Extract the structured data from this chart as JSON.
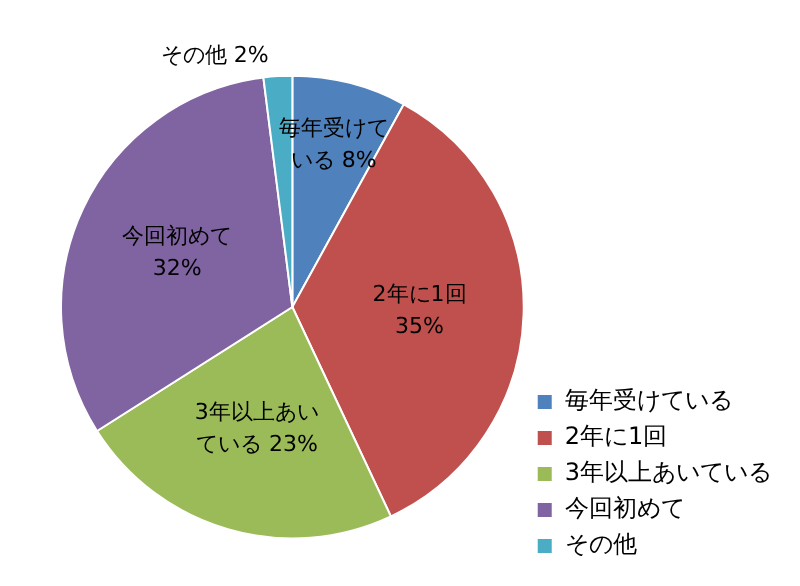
{
  "chart_data": {
    "type": "pie",
    "categories": [
      "毎年受けている",
      "2年に1回",
      "3年以上あいている",
      "今回初めて",
      "その他"
    ],
    "values": [
      8,
      35,
      23,
      32,
      2
    ],
    "value_labels": [
      "8%",
      "35%",
      "23%",
      "32%",
      "2%"
    ],
    "colors": [
      "#4f81bd",
      "#c0504d",
      "#9bbb59",
      "#8064a2",
      "#4bacc6"
    ],
    "legend": "bottom right"
  }
}
